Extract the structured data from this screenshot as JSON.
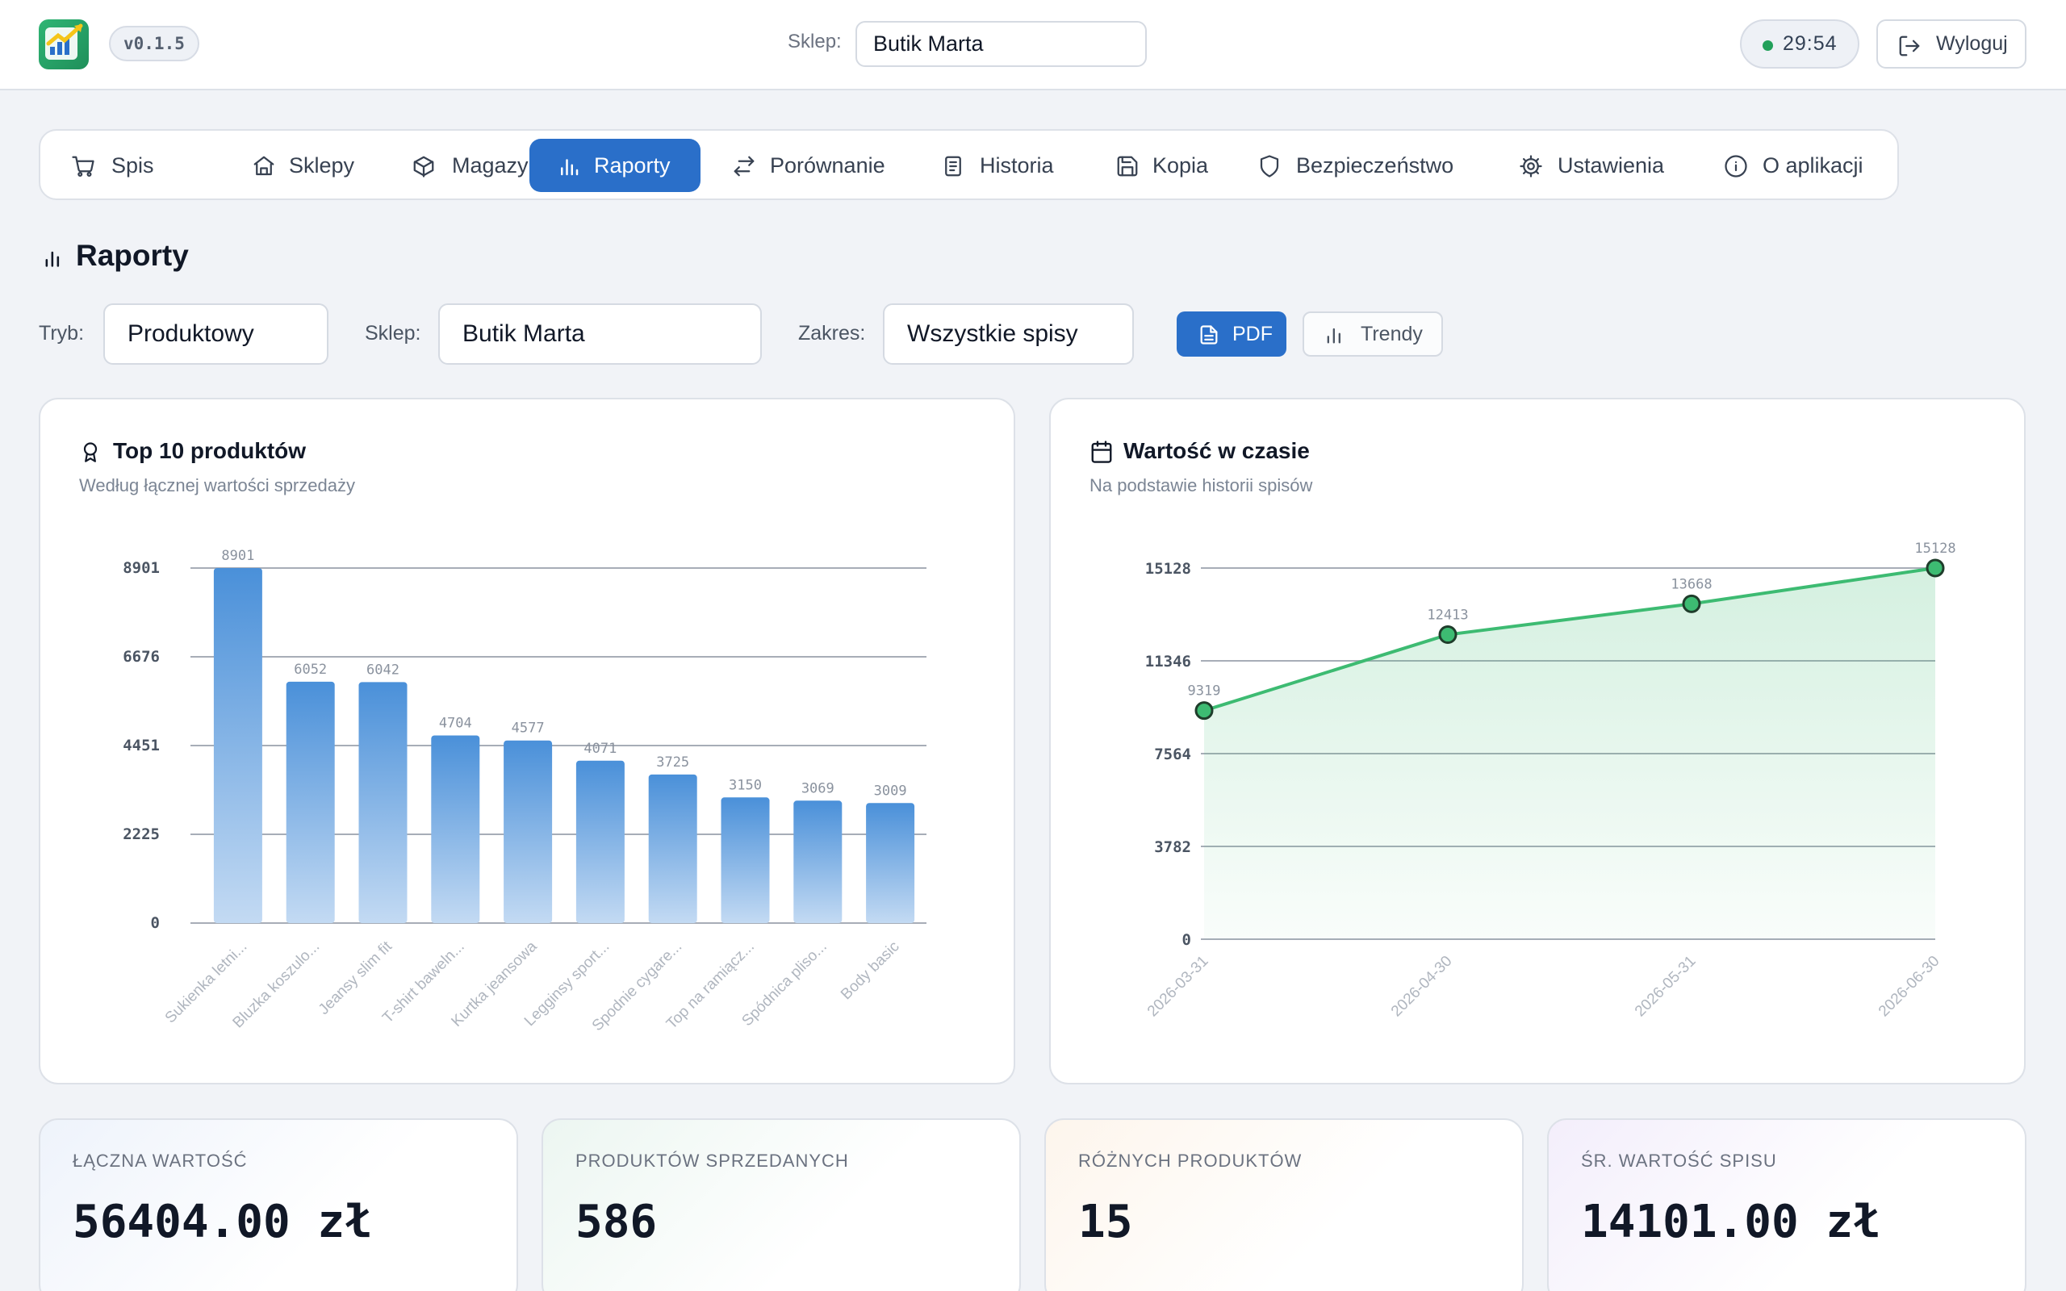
{
  "app": {
    "version": "v0.1.5",
    "shop_label": "Sklep:",
    "shop_value": "Butik Marta",
    "timer": "29:54",
    "logout_label": "Wyloguj"
  },
  "nav": {
    "tabs": [
      {
        "label": "Spis",
        "icon": "cart-icon"
      },
      {
        "label": "Sklepy",
        "icon": "store-icon"
      },
      {
        "label": "Magazyn",
        "icon": "box-icon"
      },
      {
        "label": "Raporty",
        "icon": "bar-chart-icon",
        "active": true
      },
      {
        "label": "Porównanie",
        "icon": "swap-icon"
      },
      {
        "label": "Historia",
        "icon": "document-icon"
      },
      {
        "label": "Kopia",
        "icon": "save-icon"
      },
      {
        "label": "Bezpieczeństwo",
        "icon": "shield-icon"
      },
      {
        "label": "Ustawienia",
        "icon": "gear-icon"
      },
      {
        "label": "O aplikacji",
        "icon": "info-icon"
      }
    ]
  },
  "page": {
    "title": "Raporty"
  },
  "filters": {
    "mode_label": "Tryb:",
    "mode_value": "Produktowy",
    "shop_label": "Sklep:",
    "shop_value": "Butik Marta",
    "range_label": "Zakres:",
    "range_value": "Wszystkie spisy",
    "pdf_label": "PDF",
    "trends_label": "Trendy"
  },
  "colors": {
    "accent": "#2a6fc9",
    "bar": "#4a90d9",
    "line": "#3dbb72"
  },
  "cards": {
    "top_products": {
      "title": "Top 10 produktów",
      "subtitle": "Według łącznej wartości sprzedaży"
    },
    "value_over_time": {
      "title": "Wartość w czasie",
      "subtitle": "Na podstawie historii spisów"
    }
  },
  "chart_data": [
    {
      "type": "bar",
      "categories": [
        "Sukienka letni...",
        "Bluzka koszulo...",
        "Jeansy slim fit",
        "T-shirt baweln...",
        "Kurtka jeansowa",
        "Legginsy sport...",
        "Spodnie cygare...",
        "Top na ramiącz...",
        "Spódnica pliso...",
        "Body basic"
      ],
      "values": [
        8901,
        6052,
        6042,
        4704,
        4577,
        4071,
        3725,
        3150,
        3069,
        3009
      ],
      "yticks": [
        "0",
        "2225",
        "4451",
        "6676",
        "8901"
      ],
      "ylim": [
        0,
        8901
      ],
      "grid": true
    },
    {
      "type": "area",
      "x": [
        "2026-03-31",
        "2026-04-30",
        "2026-05-31",
        "2026-06-30"
      ],
      "values": [
        9319,
        12413,
        13668,
        15128
      ],
      "yticks": [
        "0",
        "3782",
        "7564",
        "11346",
        "15128"
      ],
      "ylim": [
        0,
        15128
      ],
      "grid": true
    }
  ],
  "stats": [
    {
      "label": "ŁĄCZNA WARTOŚĆ",
      "value": "56404.00 zł"
    },
    {
      "label": "PRODUKTÓW SPRZEDANYCH",
      "value": "586"
    },
    {
      "label": "RÓŻNYCH PRODUKTÓW",
      "value": "15"
    },
    {
      "label": "ŚR. WARTOŚĆ SPISU",
      "value": "14101.00 zł"
    }
  ]
}
